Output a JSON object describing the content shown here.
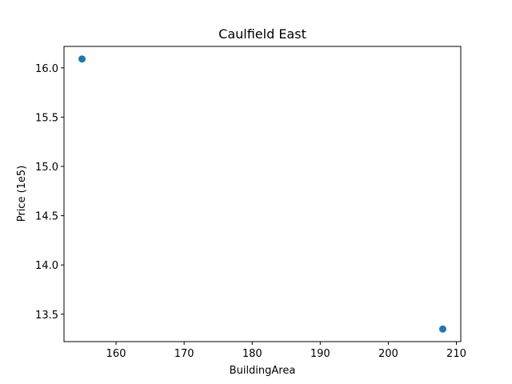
{
  "chart_data": {
    "type": "scatter",
    "title": "Caulfield East",
    "xlabel": "BuildingArea",
    "ylabel": "Price (1e5)",
    "xlim": [
      152.35,
      210.65
    ],
    "ylim": [
      13.2225,
      16.2175
    ],
    "xticks": [
      160,
      170,
      180,
      190,
      200,
      210
    ],
    "yticks": [
      13.5,
      14.0,
      14.5,
      15.0,
      15.5,
      16.0
    ],
    "xtick_labels": [
      "160",
      "170",
      "180",
      "190",
      "200",
      "210"
    ],
    "ytick_labels": [
      "13.5",
      "14.0",
      "14.5",
      "15.0",
      "15.5",
      "16.0"
    ],
    "grid": false,
    "point_color": "#1f77b4",
    "series": [
      {
        "x": [
          155,
          208
        ],
        "y": [
          16.09,
          13.35
        ]
      }
    ]
  }
}
